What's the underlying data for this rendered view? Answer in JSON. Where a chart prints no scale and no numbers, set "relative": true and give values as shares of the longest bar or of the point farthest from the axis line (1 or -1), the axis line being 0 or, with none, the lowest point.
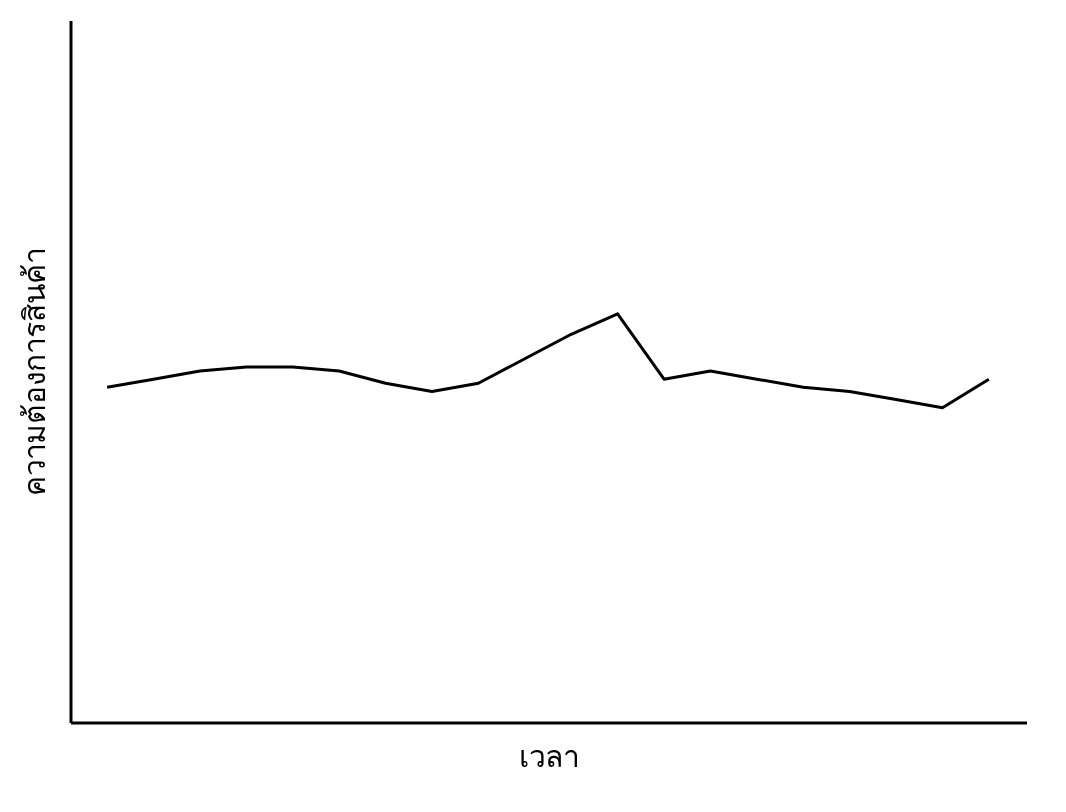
{
  "chart_data": {
    "type": "line",
    "relative": true,
    "xlabel": "เวลา",
    "ylabel": "ความต้องการสินค้า",
    "grid": false,
    "marker": "none",
    "line_style": "solid",
    "categories": [
      null,
      null,
      null,
      null,
      null,
      null,
      null,
      null,
      null,
      null,
      null,
      null,
      null,
      null,
      null,
      null,
      null,
      null,
      null,
      null
    ],
    "series": [
      {
        "color": "#000000",
        "values": [
          0.82,
          0.84,
          0.86,
          0.87,
          0.87,
          0.86,
          0.83,
          0.81,
          0.83,
          0.89,
          0.95,
          1,
          0.84,
          0.86,
          0.84,
          0.82,
          0.81,
          0.79,
          0.77,
          0.84
        ]
      }
    ]
  }
}
